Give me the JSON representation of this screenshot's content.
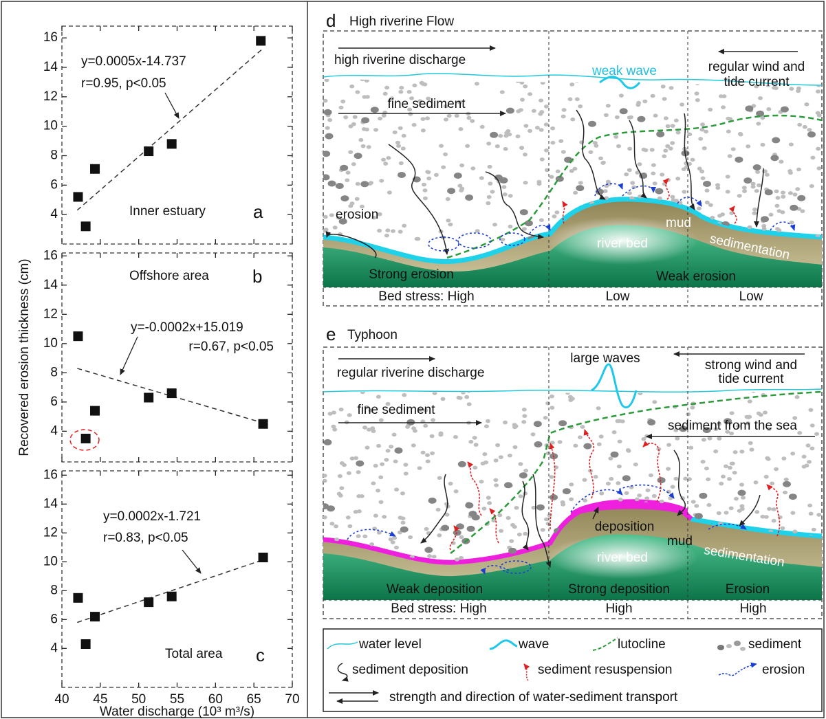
{
  "chart_data": [
    {
      "type": "scatter",
      "panel": "a",
      "region": "Inner estuary",
      "equation": [
        "y=0.0005x-14.737",
        "r=0.95, p<0.05"
      ],
      "x": [
        42.1,
        43.1,
        44.3,
        51.3,
        54.3,
        65.9
      ],
      "values": [
        5.2,
        3.2,
        7.1,
        8.3,
        8.8,
        15.8
      ],
      "color": "#111111",
      "fit": {
        "x": [
          42,
          66
        ],
        "y": [
          4.3,
          15.2
        ]
      },
      "xlim": [
        40,
        70
      ],
      "xticks": [
        40,
        45,
        50,
        55,
        60,
        65,
        70
      ],
      "ylim": [
        2,
        16.8
      ],
      "yticks": [
        4,
        6,
        8,
        10,
        12,
        14,
        16
      ]
    },
    {
      "type": "scatter",
      "panel": "b",
      "region": "Offshore area",
      "ylabel": "Recovered erosion thickness (cm)",
      "equation": [
        "y=-0.0002x+15.019",
        "r=0.67, p<0.05"
      ],
      "x": [
        42.1,
        43.1,
        44.3,
        51.3,
        54.3,
        66.2
      ],
      "values": [
        10.5,
        3.5,
        5.4,
        6.3,
        6.6,
        4.5
      ],
      "color": "#111111",
      "fit": {
        "x": [
          42,
          66
        ],
        "y": [
          8.3,
          4.6
        ]
      },
      "xlim": [
        40,
        70
      ],
      "xticks": [
        40,
        45,
        50,
        55,
        60,
        65,
        70
      ],
      "ylim": [
        1.9,
        16.2
      ],
      "yticks": [
        4,
        6,
        8,
        10,
        12,
        14,
        16
      ]
    },
    {
      "type": "scatter",
      "panel": "c",
      "region": "Total area",
      "xlabel": "Water discharge (10³ m³/s)",
      "equation": [
        "y=0.0002x-1.721",
        "r=0.83, p<0.05"
      ],
      "x": [
        42.1,
        43.1,
        44.3,
        51.3,
        54.3,
        66.2
      ],
      "values": [
        7.5,
        4.3,
        6.2,
        7.2,
        7.6,
        10.3
      ],
      "color": "#111111",
      "fit": {
        "x": [
          42,
          66
        ],
        "y": [
          5.8,
          10.1
        ]
      },
      "xlim": [
        40,
        70
      ],
      "xticks": [
        40,
        45,
        50,
        55,
        60,
        65,
        70
      ],
      "ylim": [
        1.3,
        16.3
      ],
      "yticks": [
        4,
        6,
        8,
        10,
        12,
        14,
        16
      ]
    }
  ],
  "diagram_d": {
    "label": "d",
    "title": "High riverine Flow",
    "discharge": "high riverine discharge",
    "wave": "weak wave",
    "wind": [
      "regular wind and",
      "tide current"
    ],
    "fine_sediment": "fine sediment",
    "erosion": "erosion",
    "mud": "mud",
    "river_bed": "river bed",
    "sedimentation": "sedimentation",
    "zones": [
      "Strong erosion",
      "Weak erosion"
    ],
    "bed_stress": [
      "Bed stress: High",
      "Low",
      "Low"
    ]
  },
  "diagram_e": {
    "label": "e",
    "title": "Typhoon",
    "discharge": "regular riverine discharge",
    "wave": "large waves",
    "wind": [
      "strong wind and",
      "tide current"
    ],
    "fine_sediment": "fine sediment",
    "sea_sediment": "sediment from the sea",
    "deposition": "deposition",
    "mud": "mud",
    "river_bed": "river bed",
    "sedimentation": "sedimentation",
    "zones": [
      "Weak deposition",
      "Strong deposition",
      "Erosion"
    ],
    "bed_stress": [
      "Bed stress: High",
      "High",
      "High"
    ]
  },
  "legend": {
    "items": [
      "water level",
      "wave",
      "lutocline",
      "sediment",
      "sediment deposition",
      "sediment resuspension",
      "erosion"
    ],
    "transport": "strength and direction of water-sediment transport"
  }
}
